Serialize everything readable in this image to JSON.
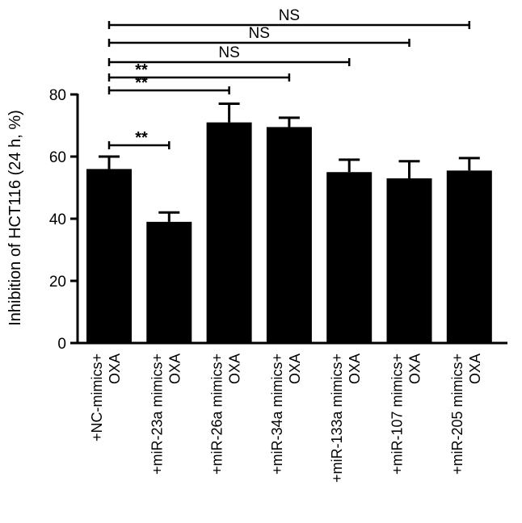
{
  "chart_data": {
    "type": "bar",
    "title": "",
    "xlabel": "",
    "ylabel": "Inhibition of HCT116 (24 h, %)",
    "ylim": [
      0,
      80
    ],
    "yticks": [
      "0",
      "20",
      "40",
      "60",
      "80"
    ],
    "categories": [
      [
        "+NC-mimics+",
        "OXA"
      ],
      [
        "+miR-23a mimics+",
        "OXA"
      ],
      [
        "+miR-26a mimics+",
        "OXA"
      ],
      [
        "+miR-34a mimics+",
        "OXA"
      ],
      [
        "+miR-133a mimics+",
        "OXA"
      ],
      [
        "+miR-107 mimics+",
        "OXA"
      ],
      [
        "+miR-205 mimics+",
        "OXA"
      ]
    ],
    "values": [
      56,
      39,
      71,
      69.5,
      55,
      53,
      55.5
    ],
    "errors": [
      4,
      3,
      6,
      3,
      4,
      5.5,
      4
    ],
    "bar_color": "#000000",
    "grid": false,
    "significance": [
      {
        "from": 0,
        "to": 1,
        "label": "**"
      },
      {
        "from": 0,
        "to": 2,
        "label": "**"
      },
      {
        "from": 0,
        "to": 3,
        "label": "**"
      },
      {
        "from": 0,
        "to": 4,
        "label": "NS"
      },
      {
        "from": 0,
        "to": 5,
        "label": "NS"
      },
      {
        "from": 0,
        "to": 6,
        "label": "NS"
      }
    ]
  }
}
